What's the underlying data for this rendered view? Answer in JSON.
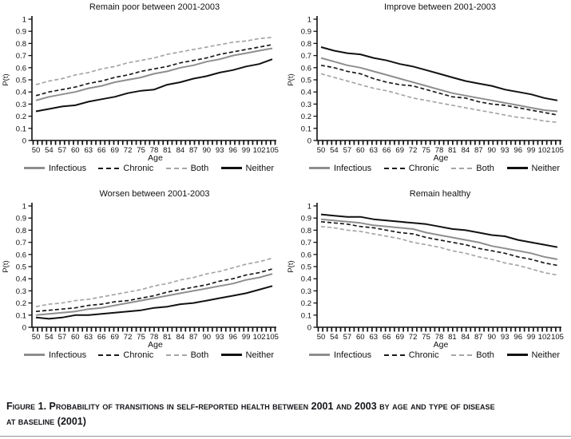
{
  "caption": {
    "line1": "Figure 1. Probability of transitions in self-reported health between 2001 and 2003 by age and type of disease",
    "line2": "at baseline (2001)"
  },
  "axes": {
    "y_ticks": [
      "1",
      "0.9",
      "0.8",
      "0.7",
      "0.6",
      "0.5",
      "0.4",
      "0.3",
      "0.2",
      "0.1",
      "0"
    ],
    "grid": "off",
    "legend_position": "bottom"
  },
  "colors": {
    "infectious": "#8e8e8e",
    "chronic": "#1a1a1a",
    "both": "#a6a6a6",
    "neither": "#111111"
  },
  "chart_data": [
    {
      "type": "line",
      "title": "Remain poor between 2001-2003",
      "xlabel": "Age",
      "ylabel": "P(t)",
      "ylim": [
        0,
        1
      ],
      "x": [
        50,
        54,
        57,
        60,
        63,
        66,
        69,
        72,
        75,
        78,
        81,
        84,
        87,
        90,
        93,
        96,
        99,
        102,
        105
      ],
      "series": [
        {
          "name": "Infectious",
          "color": "#8e8e8e",
          "dash": "solid",
          "values": [
            0.33,
            0.36,
            0.38,
            0.4,
            0.43,
            0.45,
            0.48,
            0.5,
            0.52,
            0.55,
            0.57,
            0.6,
            0.62,
            0.65,
            0.67,
            0.7,
            0.72,
            0.74,
            0.76
          ]
        },
        {
          "name": "Chronic",
          "color": "#1a1a1a",
          "dash": "dashed",
          "values": [
            0.37,
            0.4,
            0.42,
            0.44,
            0.47,
            0.49,
            0.52,
            0.54,
            0.57,
            0.59,
            0.61,
            0.64,
            0.66,
            0.68,
            0.71,
            0.73,
            0.75,
            0.77,
            0.79
          ]
        },
        {
          "name": "Both",
          "color": "#a6a6a6",
          "dash": "dashed",
          "values": [
            0.46,
            0.49,
            0.51,
            0.54,
            0.56,
            0.59,
            0.61,
            0.64,
            0.66,
            0.68,
            0.71,
            0.73,
            0.75,
            0.77,
            0.79,
            0.81,
            0.82,
            0.84,
            0.85
          ]
        },
        {
          "name": "Neither",
          "color": "#111111",
          "dash": "solid",
          "values": [
            0.24,
            0.26,
            0.28,
            0.29,
            0.32,
            0.34,
            0.36,
            0.39,
            0.41,
            0.42,
            0.46,
            0.48,
            0.51,
            0.53,
            0.56,
            0.58,
            0.61,
            0.63,
            0.67
          ]
        }
      ]
    },
    {
      "type": "line",
      "title": "Improve between 2001-2003",
      "xlabel": "Age",
      "ylabel": "P(t)",
      "ylim": [
        0,
        1
      ],
      "x": [
        50,
        54,
        57,
        60,
        63,
        66,
        69,
        72,
        75,
        78,
        81,
        84,
        87,
        90,
        93,
        96,
        99,
        102,
        105
      ],
      "series": [
        {
          "name": "Infectious",
          "color": "#8e8e8e",
          "dash": "solid",
          "values": [
            0.68,
            0.65,
            0.62,
            0.6,
            0.57,
            0.54,
            0.51,
            0.48,
            0.45,
            0.42,
            0.39,
            0.37,
            0.35,
            0.33,
            0.31,
            0.29,
            0.27,
            0.25,
            0.24
          ]
        },
        {
          "name": "Chronic",
          "color": "#1a1a1a",
          "dash": "dashed",
          "values": [
            0.62,
            0.6,
            0.57,
            0.55,
            0.51,
            0.48,
            0.46,
            0.45,
            0.42,
            0.39,
            0.36,
            0.35,
            0.32,
            0.3,
            0.29,
            0.27,
            0.25,
            0.23,
            0.21
          ]
        },
        {
          "name": "Both",
          "color": "#a6a6a6",
          "dash": "dashed",
          "values": [
            0.55,
            0.52,
            0.49,
            0.46,
            0.43,
            0.41,
            0.38,
            0.35,
            0.33,
            0.31,
            0.29,
            0.27,
            0.25,
            0.23,
            0.21,
            0.19,
            0.18,
            0.16,
            0.15
          ]
        },
        {
          "name": "Neither",
          "color": "#111111",
          "dash": "solid",
          "values": [
            0.77,
            0.74,
            0.72,
            0.71,
            0.68,
            0.66,
            0.63,
            0.61,
            0.58,
            0.55,
            0.52,
            0.49,
            0.47,
            0.45,
            0.42,
            0.4,
            0.38,
            0.35,
            0.33
          ]
        }
      ]
    },
    {
      "type": "line",
      "title": "Worsen between 2001-2003",
      "xlabel": "Age",
      "ylabel": "P(t)",
      "ylim": [
        0,
        1
      ],
      "x": [
        50,
        54,
        57,
        60,
        63,
        66,
        69,
        72,
        75,
        78,
        81,
        84,
        87,
        90,
        93,
        96,
        99,
        102,
        105
      ],
      "series": [
        {
          "name": "Infectious",
          "color": "#8e8e8e",
          "dash": "solid",
          "values": [
            0.1,
            0.11,
            0.12,
            0.13,
            0.15,
            0.16,
            0.18,
            0.2,
            0.22,
            0.24,
            0.26,
            0.28,
            0.3,
            0.32,
            0.34,
            0.36,
            0.39,
            0.41,
            0.44
          ]
        },
        {
          "name": "Chronic",
          "color": "#1a1a1a",
          "dash": "dashed",
          "values": [
            0.13,
            0.14,
            0.15,
            0.16,
            0.18,
            0.19,
            0.21,
            0.22,
            0.24,
            0.26,
            0.29,
            0.31,
            0.33,
            0.35,
            0.38,
            0.4,
            0.43,
            0.45,
            0.48
          ]
        },
        {
          "name": "Both",
          "color": "#a6a6a6",
          "dash": "dashed",
          "values": [
            0.17,
            0.19,
            0.2,
            0.22,
            0.23,
            0.25,
            0.27,
            0.29,
            0.31,
            0.34,
            0.36,
            0.39,
            0.41,
            0.44,
            0.46,
            0.49,
            0.52,
            0.54,
            0.57
          ]
        },
        {
          "name": "Neither",
          "color": "#111111",
          "dash": "solid",
          "values": [
            0.08,
            0.07,
            0.08,
            0.1,
            0.1,
            0.11,
            0.12,
            0.13,
            0.14,
            0.16,
            0.17,
            0.19,
            0.2,
            0.22,
            0.24,
            0.26,
            0.28,
            0.31,
            0.34
          ]
        }
      ]
    },
    {
      "type": "line",
      "title": "Remain healthy",
      "xlabel": "Age",
      "ylabel": "P(t)",
      "ylim": [
        0,
        1
      ],
      "x": [
        50,
        54,
        57,
        60,
        63,
        66,
        69,
        72,
        75,
        78,
        81,
        84,
        87,
        90,
        93,
        96,
        99,
        102,
        105
      ],
      "series": [
        {
          "name": "Infectious",
          "color": "#8e8e8e",
          "dash": "solid",
          "values": [
            0.89,
            0.88,
            0.87,
            0.86,
            0.84,
            0.83,
            0.82,
            0.81,
            0.78,
            0.76,
            0.74,
            0.72,
            0.7,
            0.67,
            0.65,
            0.63,
            0.61,
            0.58,
            0.56
          ]
        },
        {
          "name": "Chronic",
          "color": "#1a1a1a",
          "dash": "dashed",
          "values": [
            0.87,
            0.86,
            0.85,
            0.83,
            0.82,
            0.8,
            0.78,
            0.77,
            0.74,
            0.72,
            0.7,
            0.68,
            0.65,
            0.63,
            0.61,
            0.58,
            0.56,
            0.53,
            0.51
          ]
        },
        {
          "name": "Both",
          "color": "#a6a6a6",
          "dash": "dashed",
          "values": [
            0.83,
            0.82,
            0.8,
            0.79,
            0.77,
            0.75,
            0.73,
            0.7,
            0.68,
            0.66,
            0.63,
            0.61,
            0.58,
            0.56,
            0.53,
            0.51,
            0.48,
            0.45,
            0.43
          ]
        },
        {
          "name": "Neither",
          "color": "#111111",
          "dash": "solid",
          "values": [
            0.93,
            0.92,
            0.91,
            0.91,
            0.89,
            0.88,
            0.87,
            0.86,
            0.85,
            0.83,
            0.81,
            0.8,
            0.78,
            0.76,
            0.75,
            0.72,
            0.7,
            0.68,
            0.66
          ]
        }
      ]
    }
  ]
}
